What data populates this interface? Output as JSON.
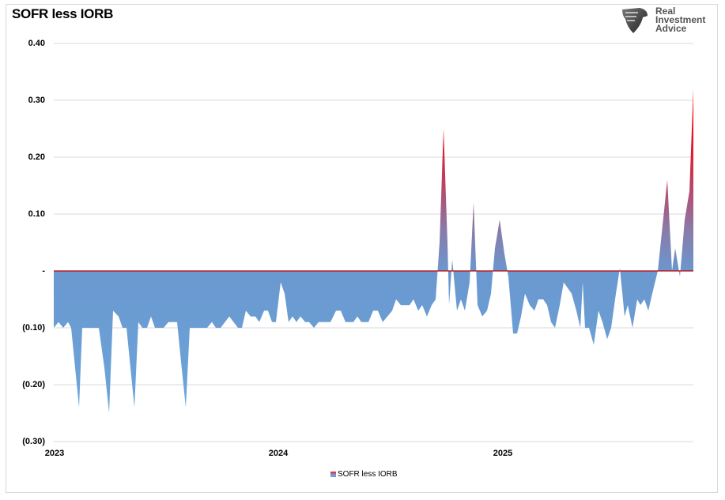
{
  "chart_data": {
    "type": "area",
    "title": "SOFR less IORB",
    "xlabel": "",
    "ylabel": "",
    "ylim": [
      -0.3,
      0.4
    ],
    "y_ticks": [
      "0.40",
      "0.30",
      "0.20",
      "0.10",
      "-",
      "(0.10)",
      "(0.20)",
      "(0.30)"
    ],
    "x_ticks": [
      "2023",
      "2024",
      "2025"
    ],
    "grid": true,
    "legend": {
      "position": "bottom",
      "entries": [
        "SOFR less IORB"
      ]
    },
    "colors": {
      "positive_top": "#ff0000",
      "fill_mid": "#7b8fc4",
      "negative": "#64a0d8",
      "zero_line": "#c00000"
    },
    "series": [
      {
        "name": "SOFR less IORB",
        "points": [
          [
            68,
            -0.1
          ],
          [
            74,
            -0.09
          ],
          [
            80,
            -0.1
          ],
          [
            86,
            -0.09
          ],
          [
            90,
            -0.1
          ],
          [
            95,
            -0.17
          ],
          [
            100,
            -0.24
          ],
          [
            104,
            -0.1
          ],
          [
            125,
            -0.1
          ],
          [
            132,
            -0.17
          ],
          [
            138,
            -0.25
          ],
          [
            143,
            -0.07
          ],
          [
            150,
            -0.08
          ],
          [
            155,
            -0.1
          ],
          [
            160,
            -0.1
          ],
          [
            170,
            -0.24
          ],
          [
            175,
            -0.09
          ],
          [
            180,
            -0.1
          ],
          [
            186,
            -0.1
          ],
          [
            191,
            -0.08
          ],
          [
            196,
            -0.1
          ],
          [
            207,
            -0.1
          ],
          [
            213,
            -0.09
          ],
          [
            224,
            -0.09
          ],
          [
            229,
            -0.16
          ],
          [
            235,
            -0.24
          ],
          [
            240,
            -0.1
          ],
          [
            262,
            -0.1
          ],
          [
            268,
            -0.09
          ],
          [
            273,
            -0.1
          ],
          [
            279,
            -0.1
          ],
          [
            290,
            -0.08
          ],
          [
            301,
            -0.1
          ],
          [
            306,
            -0.1
          ],
          [
            311,
            -0.07
          ],
          [
            317,
            -0.08
          ],
          [
            323,
            -0.08
          ],
          [
            328,
            -0.09
          ],
          [
            334,
            -0.07
          ],
          [
            339,
            -0.07
          ],
          [
            344,
            -0.09
          ],
          [
            349,
            -0.09
          ],
          [
            355,
            -0.02
          ],
          [
            360,
            -0.04
          ],
          [
            365,
            -0.09
          ],
          [
            370,
            -0.08
          ],
          [
            375,
            -0.09
          ],
          [
            380,
            -0.08
          ],
          [
            386,
            -0.09
          ],
          [
            391,
            -0.09
          ],
          [
            397,
            -0.1
          ],
          [
            403,
            -0.09
          ],
          [
            418,
            -0.09
          ],
          [
            425,
            -0.07
          ],
          [
            431,
            -0.07
          ],
          [
            437,
            -0.09
          ],
          [
            447,
            -0.09
          ],
          [
            452,
            -0.08
          ],
          [
            457,
            -0.09
          ],
          [
            466,
            -0.09
          ],
          [
            472,
            -0.07
          ],
          [
            478,
            -0.07
          ],
          [
            484,
            -0.09
          ],
          [
            490,
            -0.08
          ],
          [
            496,
            -0.07
          ],
          [
            501,
            -0.05
          ],
          [
            507,
            -0.06
          ],
          [
            518,
            -0.06
          ],
          [
            523,
            -0.05
          ],
          [
            529,
            -0.07
          ],
          [
            534,
            -0.06
          ],
          [
            540,
            -0.08
          ],
          [
            546,
            -0.06
          ],
          [
            551,
            -0.05
          ],
          [
            556,
            0.05
          ],
          [
            561,
            0.25
          ],
          [
            566,
            0.05
          ],
          [
            568,
            -0.06
          ],
          [
            572,
            0.02
          ],
          [
            578,
            -0.07
          ],
          [
            583,
            -0.05
          ],
          [
            588,
            -0.07
          ],
          [
            594,
            -0.02
          ],
          [
            599,
            0.12
          ],
          [
            604,
            -0.06
          ],
          [
            610,
            -0.08
          ],
          [
            616,
            -0.07
          ],
          [
            621,
            -0.04
          ],
          [
            626,
            0.04
          ],
          [
            632,
            0.09
          ],
          [
            638,
            0.03
          ],
          [
            643,
            -0.01
          ],
          [
            649,
            -0.11
          ],
          [
            654,
            -0.11
          ],
          [
            659,
            -0.08
          ],
          [
            664,
            -0.04
          ],
          [
            670,
            -0.06
          ],
          [
            676,
            -0.07
          ],
          [
            681,
            -0.05
          ],
          [
            687,
            -0.05
          ],
          [
            692,
            -0.06
          ],
          [
            697,
            -0.09
          ],
          [
            702,
            -0.1
          ],
          [
            708,
            -0.06
          ],
          [
            713,
            -0.02
          ],
          [
            718,
            -0.03
          ],
          [
            723,
            -0.04
          ],
          [
            729,
            -0.07
          ],
          [
            734,
            -0.1
          ],
          [
            737,
            -0.02
          ],
          [
            740,
            -0.1
          ],
          [
            745,
            -0.1
          ],
          [
            751,
            -0.13
          ],
          [
            757,
            -0.07
          ],
          [
            762,
            -0.09
          ],
          [
            768,
            -0.12
          ],
          [
            773,
            -0.1
          ],
          [
            779,
            -0.04
          ],
          [
            784,
            0.005
          ],
          [
            790,
            -0.08
          ],
          [
            794,
            -0.06
          ],
          [
            800,
            -0.1
          ],
          [
            806,
            -0.05
          ],
          [
            810,
            -0.06
          ],
          [
            815,
            -0.05
          ],
          [
            820,
            -0.07
          ],
          [
            825,
            -0.04
          ],
          [
            832,
            0.0
          ],
          [
            838,
            0.08
          ],
          [
            844,
            0.16
          ],
          [
            850,
            0.0
          ],
          [
            854,
            0.04
          ],
          [
            860,
            -0.01
          ],
          [
            866,
            0.09
          ],
          [
            872,
            0.14
          ],
          [
            877,
            0.32
          ]
        ]
      }
    ]
  },
  "header": {
    "title": "SOFR less IORB",
    "logo": {
      "icon": "eagle-shield-icon",
      "lines": [
        "Real",
        "Investment",
        "Advice"
      ]
    }
  },
  "legend_label": "SOFR less IORB"
}
